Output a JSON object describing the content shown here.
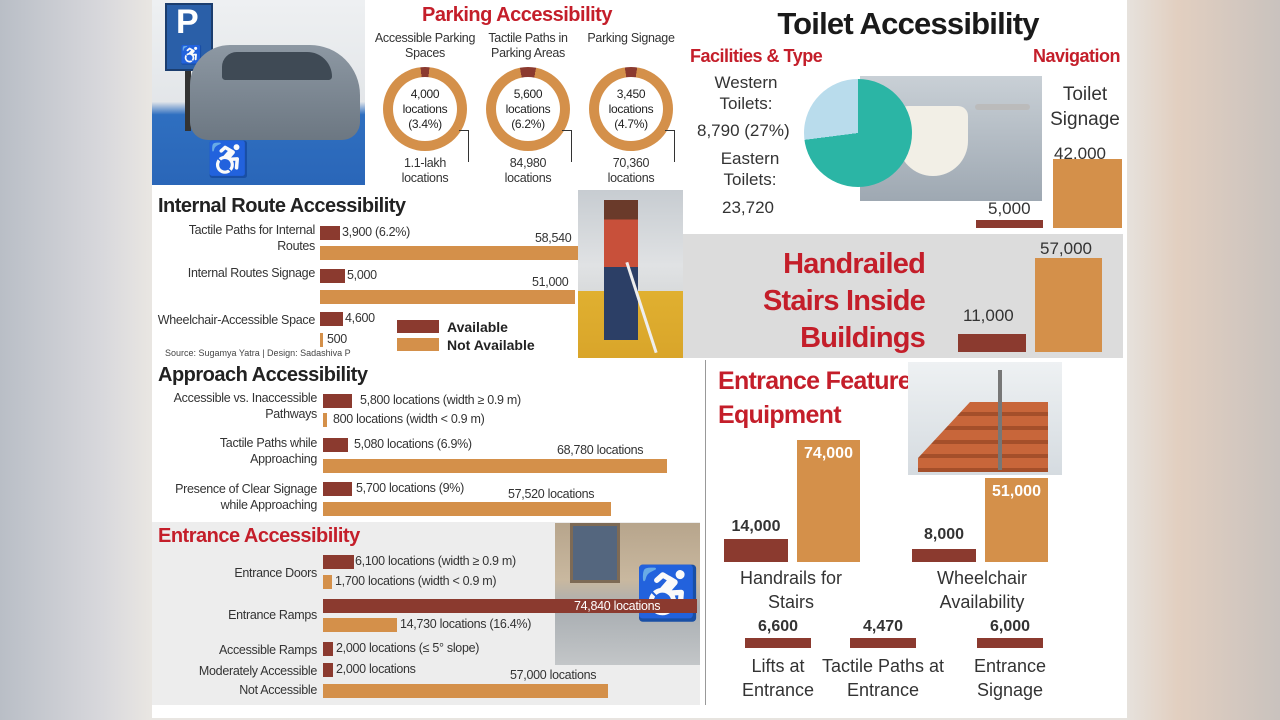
{
  "colors": {
    "available": "#8b3a2f",
    "not_available": "#d4904a",
    "heading_red": "#c41e2a",
    "western": "#b9dcec",
    "eastern": "#2bb5a5"
  },
  "icons": {
    "parking_sign": "parking-sign-icon",
    "wheelchair": "wheelchair-icon"
  },
  "legend": {
    "available": "Available",
    "not_available": "Not Available"
  },
  "source": "Source: Sugamya Yatra | Design: Sadashiva P",
  "parking_sign_letter": "P",
  "chart_data": [
    {
      "type": "donut",
      "title": "Parking Accessibility",
      "items": [
        {
          "label": "Accessible Parking Spaces",
          "available": 4000,
          "available_text": "4,000 locations (3.4%)",
          "percent": 3.4,
          "total_text": "1.1-lakh locations"
        },
        {
          "label": "Tactile Paths in Parking Areas",
          "available": 5600,
          "available_text": "5,600 locations (6.2%)",
          "percent": 6.2,
          "total_text": "84,980 locations"
        },
        {
          "label": "Parking Signage",
          "available": 3450,
          "available_text": "3,450 locations (4.7%)",
          "percent": 4.7,
          "total_text": "70,360 locations"
        }
      ]
    },
    {
      "type": "bar",
      "orientation": "horizontal",
      "title": "Internal Route Accessibility",
      "rows": [
        {
          "label": "Tactile Paths for Internal Routes",
          "available": 3900,
          "available_text": "3,900 (6.2%)",
          "not_available": 58540,
          "not_available_text": "58,540"
        },
        {
          "label": "Internal Routes Signage",
          "available": 5000,
          "available_text": "5,000",
          "not_available": 51000,
          "not_available_text": "51,000"
        },
        {
          "label": "Wheelchair-Accessible Space",
          "available": 4600,
          "available_text": "4,600",
          "not_available": 500,
          "not_available_text": "500"
        }
      ]
    },
    {
      "type": "pie",
      "title": "Toilet Accessibility",
      "subtitle": "Facilities & Type",
      "slices": [
        {
          "label": "Western Toilets:",
          "value": 8790,
          "text": "8,790 (27%)"
        },
        {
          "label": "Eastern Toilets:",
          "value": 23720,
          "text": "23,720"
        }
      ]
    },
    {
      "type": "bar",
      "orientation": "vertical",
      "subtitle": "Navigation",
      "label": "Toilet Signage",
      "available": 5000,
      "available_text": "5,000",
      "not_available": 42000,
      "not_available_text": "42,000"
    },
    {
      "type": "bar",
      "orientation": "vertical",
      "title": "Handrailed Stairs Inside Buildings",
      "available": 11000,
      "available_text": "11,000",
      "not_available": 57000,
      "not_available_text": "57,000"
    },
    {
      "type": "bar",
      "orientation": "horizontal",
      "title": "Approach Accessibility",
      "rows": [
        {
          "label": "Accessible vs. Inaccessible Pathways",
          "available": 5800,
          "available_text": "5,800 locations (width ≥ 0.9 m)",
          "not_available": 800,
          "not_available_text": "800 locations (width < 0.9 m)"
        },
        {
          "label": "Tactile Paths while Approaching",
          "available": 5080,
          "available_text": "5,080 locations (6.9%)",
          "not_available": 68780,
          "not_available_text": "68,780 locations"
        },
        {
          "label": "Presence of Clear Signage while Approaching",
          "available": 5700,
          "available_text": "5,700 locations (9%)",
          "not_available": 57520,
          "not_available_text": "57,520 locations"
        }
      ]
    },
    {
      "type": "bar",
      "orientation": "horizontal",
      "title": "Entrance Accessibility",
      "rows": [
        {
          "label": "Entrance Doors",
          "available": 6100,
          "available_text": "6,100 locations (width ≥ 0.9 m)",
          "not_available": 1700,
          "not_available_text": "1,700 locations (width < 0.9 m)"
        },
        {
          "label": "Entrance Ramps",
          "available": 74840,
          "available_text": "74,840 locations",
          "not_available": 14730,
          "not_available_text": "14,730 locations (16.4%)"
        },
        {
          "label": "Accessible Ramps",
          "available": 2000,
          "available_text": "2,000 locations (≤ 5° slope)"
        },
        {
          "label": "Moderately Accessible",
          "available": 2000,
          "available_text": "2,000 locations"
        },
        {
          "label": "Not Accessible",
          "not_available": 57000,
          "not_available_text": "57,000 locations"
        }
      ]
    },
    {
      "type": "bar",
      "orientation": "vertical",
      "title": "Entrance Features & Equipment",
      "groups": [
        {
          "label": "Handrails for Stairs",
          "available": 14000,
          "available_text": "14,000",
          "not_available": 74000,
          "not_available_text": "74,000"
        },
        {
          "label": "Wheelchair Availability",
          "available": 8000,
          "available_text": "8,000",
          "not_available": 51000,
          "not_available_text": "51,000"
        },
        {
          "label": "Lifts at Entrance",
          "available": 6600,
          "available_text": "6,600"
        },
        {
          "label": "Tactile Paths at Entrance",
          "available": 4470,
          "available_text": "4,470"
        },
        {
          "label": "Entrance Signage",
          "available": 6000,
          "available_text": "6,000"
        }
      ]
    }
  ]
}
